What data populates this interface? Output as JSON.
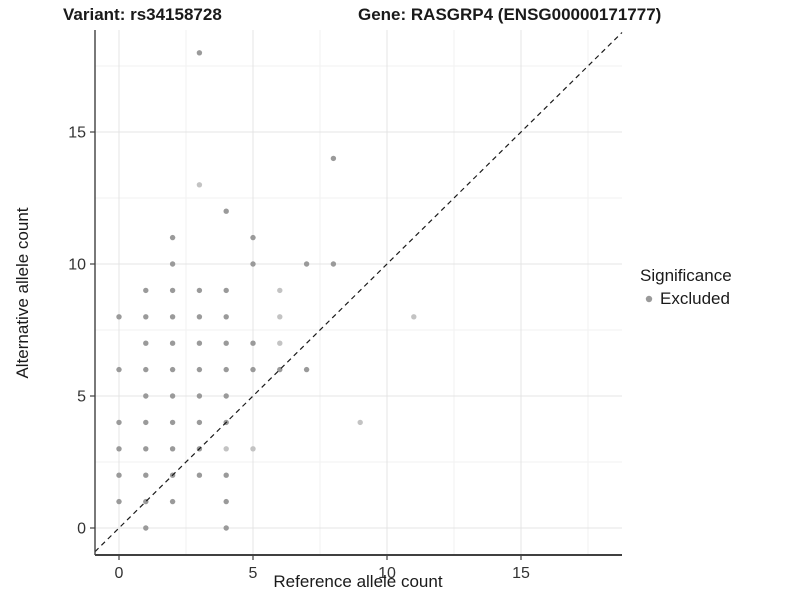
{
  "titles": {
    "variant": "Variant: rs34158728",
    "gene": "Gene: RASGRP4 (ENSG00000171777)"
  },
  "axes": {
    "x": {
      "label": "Reference allele count",
      "ticks": [
        0,
        5,
        10,
        15
      ],
      "minor_ticks": [
        2.5,
        7.5,
        12.5,
        17.5
      ],
      "range": [
        -0.9,
        18.8
      ]
    },
    "y": {
      "label": "Alternative allele count",
      "ticks": [
        0,
        5,
        10,
        15
      ],
      "minor_ticks": [
        2.5,
        7.5,
        12.5,
        17.5
      ],
      "range": [
        -1.0,
        18.9
      ]
    }
  },
  "legend": {
    "title": "Significance",
    "items": [
      {
        "label": "Excluded",
        "color": "#9a9a9a"
      }
    ]
  },
  "colors": {
    "point": "#9a9a9a",
    "point_light": "#c3c3c3",
    "grid_major": "#e4e4e4",
    "grid_minor": "#f2f2f2",
    "axis_line": "#404040",
    "tick_text": "#333333",
    "diagonal": "#1a1a1a"
  },
  "chart_data": {
    "type": "scatter",
    "title": "Variant: rs34158728 — Gene: RASGRP4 (ENSG00000171777)",
    "xlabel": "Reference allele count",
    "ylabel": "Alternative allele count",
    "xlim": [
      -0.9,
      18.8
    ],
    "ylim": [
      -1.0,
      18.9
    ],
    "grid": true,
    "legend_position": "right",
    "identity_line": {
      "equation": "y = x",
      "style": "dashed",
      "color": "#1a1a1a"
    },
    "series_name": "Excluded",
    "points": [
      {
        "x": 3,
        "y": 18
      },
      {
        "x": 8,
        "y": 14
      },
      {
        "x": 3,
        "y": 13,
        "shade": "light"
      },
      {
        "x": 4,
        "y": 12
      },
      {
        "x": 2,
        "y": 11
      },
      {
        "x": 5,
        "y": 11
      },
      {
        "x": 2,
        "y": 10
      },
      {
        "x": 5,
        "y": 10
      },
      {
        "x": 7,
        "y": 10
      },
      {
        "x": 8,
        "y": 10
      },
      {
        "x": 1,
        "y": 9
      },
      {
        "x": 2,
        "y": 9
      },
      {
        "x": 3,
        "y": 9
      },
      {
        "x": 4,
        "y": 9
      },
      {
        "x": 6,
        "y": 9,
        "shade": "light"
      },
      {
        "x": 0,
        "y": 8
      },
      {
        "x": 1,
        "y": 8
      },
      {
        "x": 2,
        "y": 8
      },
      {
        "x": 3,
        "y": 8
      },
      {
        "x": 4,
        "y": 8
      },
      {
        "x": 6,
        "y": 8,
        "shade": "light"
      },
      {
        "x": 11,
        "y": 8,
        "shade": "light"
      },
      {
        "x": 1,
        "y": 7
      },
      {
        "x": 2,
        "y": 7
      },
      {
        "x": 3,
        "y": 7
      },
      {
        "x": 4,
        "y": 7
      },
      {
        "x": 5,
        "y": 7
      },
      {
        "x": 6,
        "y": 7,
        "shade": "light"
      },
      {
        "x": 0,
        "y": 6
      },
      {
        "x": 1,
        "y": 6
      },
      {
        "x": 2,
        "y": 6
      },
      {
        "x": 3,
        "y": 6
      },
      {
        "x": 4,
        "y": 6
      },
      {
        "x": 5,
        "y": 6
      },
      {
        "x": 6,
        "y": 6
      },
      {
        "x": 7,
        "y": 6
      },
      {
        "x": 1,
        "y": 5
      },
      {
        "x": 2,
        "y": 5
      },
      {
        "x": 3,
        "y": 5
      },
      {
        "x": 4,
        "y": 5
      },
      {
        "x": 0,
        "y": 4
      },
      {
        "x": 1,
        "y": 4
      },
      {
        "x": 2,
        "y": 4
      },
      {
        "x": 3,
        "y": 4
      },
      {
        "x": 4,
        "y": 4
      },
      {
        "x": 9,
        "y": 4,
        "shade": "light"
      },
      {
        "x": 0,
        "y": 3
      },
      {
        "x": 1,
        "y": 3
      },
      {
        "x": 2,
        "y": 3
      },
      {
        "x": 3,
        "y": 3
      },
      {
        "x": 4,
        "y": 3,
        "shade": "light"
      },
      {
        "x": 5,
        "y": 3,
        "shade": "light"
      },
      {
        "x": 0,
        "y": 2
      },
      {
        "x": 1,
        "y": 2
      },
      {
        "x": 2,
        "y": 2
      },
      {
        "x": 3,
        "y": 2
      },
      {
        "x": 4,
        "y": 2
      },
      {
        "x": 0,
        "y": 1
      },
      {
        "x": 1,
        "y": 1
      },
      {
        "x": 2,
        "y": 1
      },
      {
        "x": 4,
        "y": 1
      },
      {
        "x": 1,
        "y": 0
      },
      {
        "x": 4,
        "y": 0
      }
    ]
  }
}
